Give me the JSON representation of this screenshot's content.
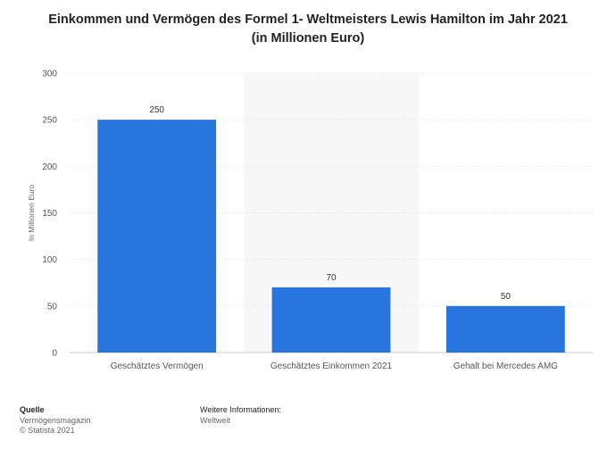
{
  "chart_data": {
    "type": "bar",
    "title_line1": "Einkommen und Vermögen des Formel 1- Weltmeisters Lewis Hamilton im Jahr 2021",
    "title_line2": "(in Millionen Euro)",
    "ylabel": "In Millionen Euro",
    "xlabel": "",
    "categories": [
      "Geschätztes Vermögen",
      "Geschätztes Einkommen 2021",
      "Gehalt bei Mercedes AMG"
    ],
    "values": [
      250,
      70,
      50
    ],
    "data_labels": [
      "250",
      "70",
      "50"
    ],
    "ylim": [
      0,
      300
    ],
    "yticks": [
      0,
      50,
      100,
      150,
      200,
      250,
      300
    ],
    "ytick_labels": [
      "0",
      "50",
      "100",
      "150",
      "200",
      "250",
      "300"
    ],
    "bar_color": "#2876dd",
    "grid": true,
    "highlighted_category_background": 1
  },
  "footer": {
    "source_heading": "Quelle",
    "source_line1": "Vermögensmagazin",
    "source_line2": "© Statista 2021",
    "info_heading": "Weitere Informationen:",
    "info_line1": "Weltweit"
  }
}
